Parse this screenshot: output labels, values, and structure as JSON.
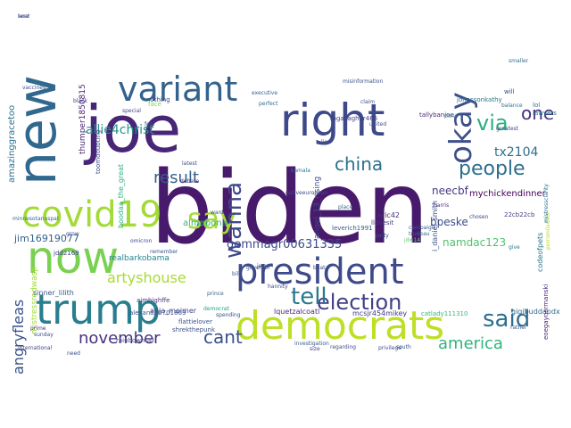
{
  "words": [
    {
      "text": "biden",
      "color": "#481a6c"
    },
    {
      "text": "joe",
      "color": "#482677"
    },
    {
      "text": "president",
      "color": "#3e4a89"
    },
    {
      "text": "now",
      "color": "#7ad151"
    },
    {
      "text": "trump",
      "color": "#287d8e"
    },
    {
      "text": "democrats",
      "color": "#bddf26"
    },
    {
      "text": "right",
      "color": "#3e4989"
    },
    {
      "text": "new",
      "color": "#31688e"
    },
    {
      "text": "covid19",
      "color": "#a2da37"
    },
    {
      "text": "variant",
      "color": "#33638d"
    },
    {
      "text": "say",
      "color": "#a5db36"
    },
    {
      "text": "okay",
      "color": "#3c4f8a"
    },
    {
      "text": "via",
      "color": "#2ab07f"
    },
    {
      "text": "said",
      "color": "#2d708e"
    },
    {
      "text": "election",
      "color": "#424086"
    },
    {
      "text": "people",
      "color": "#2e6e8e"
    },
    {
      "text": "america",
      "color": "#2fb47c"
    },
    {
      "text": "tell",
      "color": "#2a788e"
    },
    {
      "text": "november",
      "color": "#46327e"
    },
    {
      "text": "cant",
      "color": "#3b518b"
    },
    {
      "text": "result",
      "color": "#355f8d"
    },
    {
      "text": "china",
      "color": "#2c728e"
    },
    {
      "text": "wanna",
      "color": "#3f4788"
    },
    {
      "text": "one",
      "color": "#472f7d"
    },
    {
      "text": "allie4christ",
      "color": "#1f958b"
    },
    {
      "text": "artyshouse",
      "color": "#a8db34"
    },
    {
      "text": "tx2104",
      "color": "#2e6f8e"
    },
    {
      "text": "namdac123",
      "color": "#4ec36b"
    },
    {
      "text": "gemmagr00631335",
      "color": "#3e4a89"
    },
    {
      "text": "neecbf",
      "color": "#453781"
    },
    {
      "text": "angryfleas",
      "color": "#3b528b"
    },
    {
      "text": "jim16919077",
      "color": "#33638d"
    },
    {
      "text": "bpeske",
      "color": "#3e4c8a"
    },
    {
      "text": "mychickendinner",
      "color": "#440154"
    },
    {
      "text": "amazinggracetoo",
      "color": "#2c728e"
    },
    {
      "text": "thumper1850815",
      "color": "#482173"
    },
    {
      "text": "almabona",
      "color": "#31b57b"
    },
    {
      "text": "angel_13_rising",
      "color": "#3e4a89"
    },
    {
      "text": "i_daniel_smith",
      "color": "#3b528b"
    },
    {
      "text": "eric42",
      "color": "#472d7b"
    },
    {
      "text": "codeofpets",
      "color": "#2a768e"
    },
    {
      "text": "realbarkobama",
      "color": "#25838e"
    },
    {
      "text": "anja_meimer",
      "color": "#404387"
    },
    {
      "text": "alexand20701863",
      "color": "#3b518b"
    },
    {
      "text": "mistressredwasp",
      "color": "#9fda3a"
    },
    {
      "text": "sinner_lilith",
      "color": "#38588c"
    },
    {
      "text": "boodaa_the_great",
      "color": "#2db27d"
    },
    {
      "text": "22cb22cb",
      "color": "#433e85"
    },
    {
      "text": "gigibuddapdx",
      "color": "#31688e"
    },
    {
      "text": "lquetzalcoatl",
      "color": "#472a7a"
    },
    {
      "text": "mcsjr454mikey",
      "color": "#443a83"
    },
    {
      "text": "catlady111310",
      "color": "#35b779"
    },
    {
      "text": "flattielover",
      "color": "#39558c"
    },
    {
      "text": "shrekthepunk",
      "color": "#3a538b"
    },
    {
      "text": "rainbowmail",
      "color": "#3a548c"
    },
    {
      "text": "mgallagher465",
      "color": "#423f85"
    },
    {
      "text": "tallybanjoe",
      "color": "#481f70"
    },
    {
      "text": "johnssonkathy",
      "color": "#2c738e"
    },
    {
      "text": "aimhighffe",
      "color": "#46337f"
    },
    {
      "text": "jdd2169",
      "color": "#3f4889"
    },
    {
      "text": "omicron",
      "color": "#3e4a89"
    },
    {
      "text": "kamala",
      "color": "#2a788e"
    },
    {
      "text": "nativeeuropean",
      "color": "#3e4c8a"
    },
    {
      "text": "mmp",
      "color": "#24868e"
    },
    {
      "text": "lldoesit",
      "color": "#443983"
    },
    {
      "text": "leverich1991",
      "color": "#39568c"
    },
    {
      "text": "harris",
      "color": "#472c7a"
    },
    {
      "text": "nothing",
      "color": "#3b518b"
    },
    {
      "text": "smaller",
      "color": "#2f6c8e"
    },
    {
      "text": "will",
      "color": "#3d4e8a"
    },
    {
      "text": "lawyers",
      "color": "#2a778e"
    },
    {
      "text": "prince",
      "color": "#35608d"
    },
    {
      "text": "democrat",
      "color": "#1fa187"
    },
    {
      "text": "minnesotanuspat",
      "color": "#32658e"
    },
    {
      "text": "toomdoubting",
      "color": "#3f4788"
    },
    {
      "text": "perromiladaul",
      "color": "#b8de29"
    },
    {
      "text": "eoegaynormanski",
      "color": "#482576"
    },
    {
      "text": "mistressclarity",
      "color": "#2b748e"
    },
    {
      "text": "international",
      "color": "#424186"
    },
    {
      "text": "investigation",
      "color": "#38598c"
    },
    {
      "text": "regarding",
      "color": "#3d4d8a"
    },
    {
      "text": "spending",
      "color": "#3c4f8a"
    },
    {
      "text": "campaign",
      "color": "#37598c"
    },
    {
      "text": "trudeau",
      "color": "#2f6b8e"
    },
    {
      "text": "party",
      "color": "#3a538b"
    },
    {
      "text": "misinformation",
      "color": "#3c508b"
    },
    {
      "text": "jdw14",
      "color": "#5cc863"
    },
    {
      "text": "lol",
      "color": "#2d708e"
    },
    {
      "text": "vaccines",
      "color": "#3c4f8a"
    },
    {
      "text": "executive",
      "color": "#355e8d"
    },
    {
      "text": "perfect",
      "color": "#2f6b8e"
    },
    {
      "text": "special",
      "color": "#3e4a89"
    },
    {
      "text": "face",
      "color": "#7fd34e"
    },
    {
      "text": "fool",
      "color": "#3b528b"
    },
    {
      "text": "latest",
      "color": "#3d4e8a"
    },
    {
      "text": "debate",
      "color": "#46327e"
    },
    {
      "text": "mean",
      "color": "#443a83"
    },
    {
      "text": "place",
      "color": "#2f6b8e"
    },
    {
      "text": "live",
      "color": "#48186a"
    },
    {
      "text": "chosen",
      "color": "#3e4989"
    },
    {
      "text": "balance",
      "color": "#2c718e"
    },
    {
      "text": "greatest",
      "color": "#3f4889"
    },
    {
      "text": "rather",
      "color": "#3a548c"
    },
    {
      "text": "give",
      "color": "#2b758e"
    },
    {
      "text": "remember",
      "color": "#39568c"
    },
    {
      "text": "sunday",
      "color": "#3b518b"
    },
    {
      "text": "privilege",
      "color": "#3e4a89"
    },
    {
      "text": "south",
      "color": "#3a538b"
    },
    {
      "text": "size",
      "color": "#3f4788"
    },
    {
      "text": "beat",
      "color": "#3c4f8a"
    },
    {
      "text": "bill",
      "color": "#38588c"
    },
    {
      "text": "want",
      "color": "#3e4a89"
    },
    {
      "text": "claim",
      "color": "#3d4e8a"
    },
    {
      "text": "lie",
      "color": "#3b528b"
    },
    {
      "text": "prime",
      "color": "#46327e"
    },
    {
      "text": "grow",
      "color": "#3e4c8a"
    },
    {
      "text": "black",
      "color": "#443983"
    },
    {
      "text": "need",
      "color": "#3c4f8a"
    },
    {
      "text": "united",
      "color": "#3b528b"
    },
    {
      "text": "jews",
      "color": "#3e4a89"
    },
    {
      "text": "governor",
      "color": "#3b518b"
    },
    {
      "text": "hannity",
      "color": "#3e4a89"
    },
    {
      "text": "sent",
      "color": "#3a538b"
    },
    {
      "text": "hear",
      "color": "#3f4788"
    }
  ]
}
